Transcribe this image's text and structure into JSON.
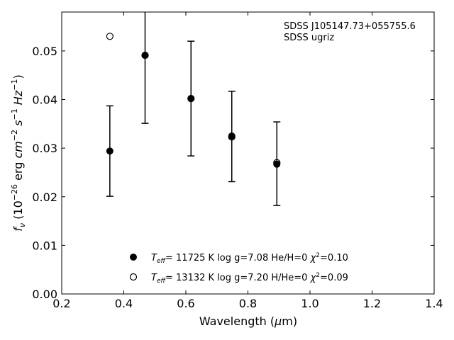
{
  "chart_data": {
    "type": "scatter",
    "title": "",
    "xlabel": "Wavelength (μm)",
    "ylabel": "fν (10⁻²⁶ erg cm⁻² s⁻¹ Hz⁻¹)",
    "xlim": [
      0.2,
      1.4
    ],
    "ylim": [
      0.0,
      0.058
    ],
    "xticks": [
      0.2,
      0.4,
      0.6,
      0.8,
      1.0,
      1.2,
      1.4
    ],
    "xtick_labels": [
      "0.2",
      "0.4",
      "0.6",
      "0.8",
      "1.0",
      "1.2",
      "1.4"
    ],
    "yticks": [
      0.0,
      0.01,
      0.02,
      0.03,
      0.04,
      0.05
    ],
    "ytick_labels": [
      "0.00",
      "0.01",
      "0.02",
      "0.03",
      "0.04",
      "0.05"
    ],
    "grid": false,
    "annotation": [
      "SDSS J105147.73+055755.6",
      "SDSS ugriz"
    ],
    "observed": {
      "x": [
        0.3551,
        0.4686,
        0.6166,
        0.748,
        0.8932
      ],
      "y": [
        0.0294,
        0.0491,
        0.0402,
        0.0324,
        0.0268
      ],
      "yerr": [
        0.0093,
        0.014,
        0.0118,
        0.0093,
        0.0086
      ]
    },
    "series": [
      {
        "marker": "filled-circle",
        "color": "#000000",
        "legend": {
          "teff": "11725 K",
          "rest": "log g=7.08  He/H=0",
          "chi2": "=0.10"
        },
        "x": [
          0.3551,
          0.4686,
          0.6166,
          0.748,
          0.8932
        ],
        "y": [
          0.0294,
          0.0491,
          0.0402,
          0.0325,
          0.0267
        ]
      },
      {
        "marker": "open-circle",
        "color": "#000000",
        "legend": {
          "teff": "13132 K",
          "rest": "log g=7.20  H/He=0",
          "chi2": "=0.09"
        },
        "x": [
          0.3551,
          0.4686,
          0.6166,
          0.748,
          0.8932
        ],
        "y": [
          0.053,
          0.0491,
          0.0402,
          0.0323,
          0.027
        ]
      }
    ],
    "legend_placement": "lower-center"
  }
}
